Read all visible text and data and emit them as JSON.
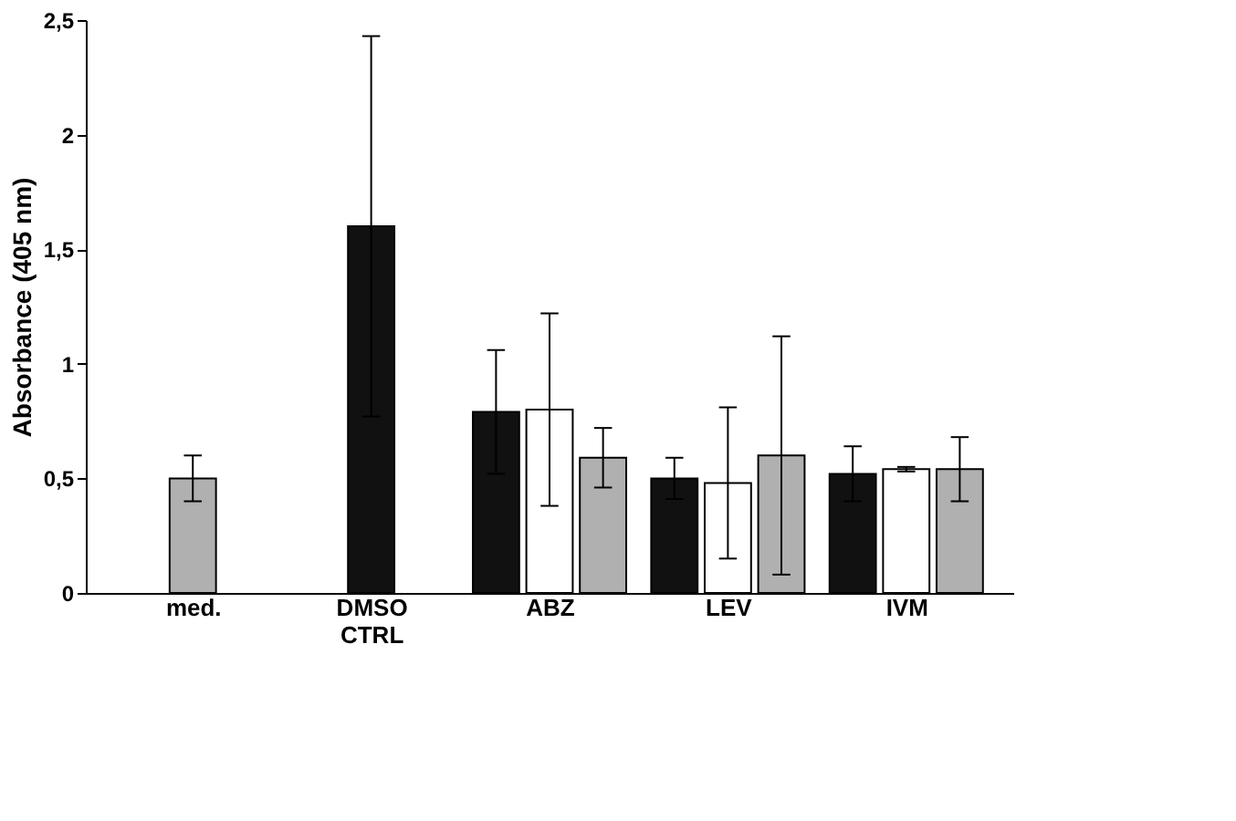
{
  "chart_data": {
    "type": "bar",
    "ylabel": "Absorbance (405 nm)",
    "categories": [
      "med.",
      "DMSO CTRL",
      "ABZ",
      "LEV",
      "IVM"
    ],
    "series": [
      {
        "color": "#111111",
        "values": [
          null,
          1.6,
          0.79,
          0.5,
          0.52
        ],
        "errors": [
          null,
          0.83,
          0.27,
          0.09,
          0.12
        ]
      },
      {
        "color": "#ffffff",
        "values": [
          null,
          null,
          0.8,
          0.48,
          0.54
        ],
        "errors": [
          null,
          null,
          0.42,
          0.33,
          0.01
        ]
      },
      {
        "color": "#b0b0b0",
        "values": [
          0.5,
          null,
          0.59,
          0.6,
          0.54
        ],
        "errors": [
          0.1,
          null,
          0.13,
          0.52,
          0.14
        ]
      }
    ],
    "ylim": [
      0,
      2.5
    ],
    "yticks": [
      0,
      {
        "value": 0.5,
        "label": "0,5"
      },
      1,
      {
        "value": 1.5,
        "label": "1,5"
      },
      2,
      {
        "value": 2.5,
        "label": "2,5"
      }
    ],
    "grid": false
  }
}
